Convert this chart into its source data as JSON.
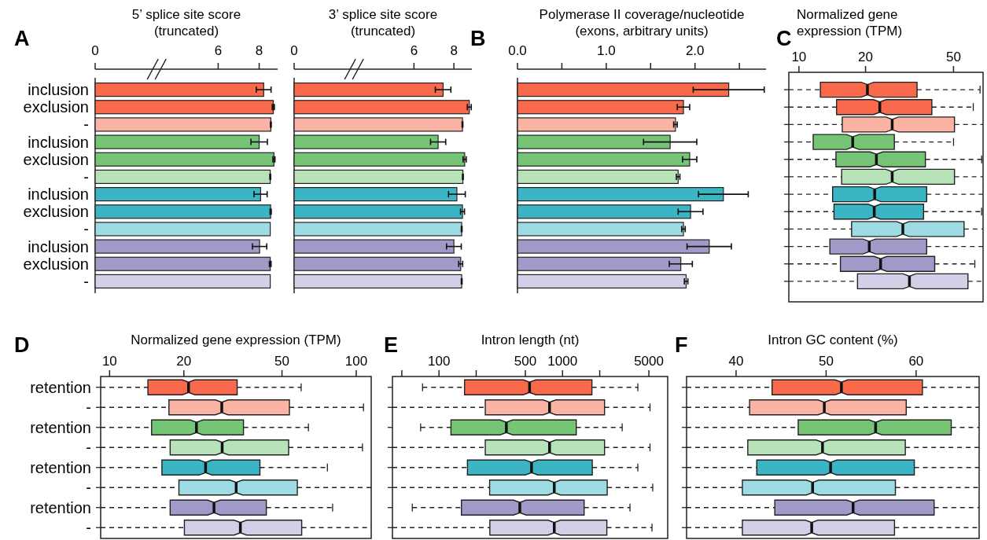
{
  "chart_data": [
    {
      "type": "bar",
      "orientation": "horizontal",
      "xlabel": "5’ splice site score\n(truncated)",
      "annotations": [
        "A"
      ],
      "categories": [
        "inclusion",
        "exclusion",
        "-",
        "inclusion",
        "exclusion",
        "-",
        "inclusion",
        "exclusion",
        "-",
        "inclusion",
        "exclusion",
        "-"
      ],
      "values": [
        8.22,
        8.69,
        8.57,
        8.0,
        8.72,
        8.54,
        8.07,
        8.56,
        8.54,
        8.02,
        8.54,
        8.54
      ],
      "errors": [
        0.36,
        0.05,
        0.02,
        0.4,
        0.05,
        0.02,
        0.32,
        0.03,
        null,
        0.35,
        0.04,
        null
      ],
      "colors": [
        "#f96a4c",
        "#f96a4c",
        "#fbb3a3",
        "#76c576",
        "#76c576",
        "#b8e2b8",
        "#3bb5c4",
        "#3bb5c4",
        "#9fdbe2",
        "#a09ac8",
        "#a09ac8",
        "#d2cfe6"
      ],
      "xlim": [
        0,
        8.9
      ],
      "xticks": [
        0,
        6,
        8
      ]
    },
    {
      "type": "bar",
      "orientation": "horizontal",
      "xlabel": "3’ splice site score\n(truncated)",
      "categories": [
        null,
        null,
        null,
        null,
        null,
        null,
        null,
        null,
        null,
        null,
        null,
        null
      ],
      "values": [
        7.46,
        8.77,
        8.43,
        7.21,
        8.54,
        8.45,
        8.15,
        8.43,
        8.39,
        8.0,
        8.34,
        8.39
      ],
      "errors": [
        0.39,
        0.1,
        0.02,
        0.38,
        0.08,
        0.02,
        0.42,
        0.1,
        0.02,
        0.37,
        0.1,
        0.02
      ],
      "colors": [
        "#f96a4c",
        "#f96a4c",
        "#fbb3a3",
        "#76c576",
        "#76c576",
        "#b8e2b8",
        "#3bb5c4",
        "#3bb5c4",
        "#9fdbe2",
        "#a09ac8",
        "#a09ac8",
        "#d2cfe6"
      ],
      "xlim": [
        0,
        8.9
      ],
      "xticks": [
        0,
        6,
        8
      ]
    },
    {
      "type": "bar",
      "orientation": "horizontal",
      "xlabel": "Polymerase II coverage/nucleotide\n(exons, arbitrary units)",
      "annotations": [
        "B"
      ],
      "categories": [
        null,
        null,
        null,
        null,
        null,
        null,
        null,
        null,
        null,
        null,
        null,
        null
      ],
      "values": [
        2.38,
        1.87,
        1.78,
        1.72,
        1.94,
        1.81,
        2.32,
        1.95,
        1.87,
        2.16,
        1.84,
        1.9
      ],
      "errors": [
        0.4,
        0.07,
        0.02,
        0.3,
        0.08,
        0.02,
        0.28,
        0.14,
        0.02,
        0.25,
        0.13,
        0.02
      ],
      "colors": [
        "#f96a4c",
        "#f96a4c",
        "#fbb3a3",
        "#76c576",
        "#76c576",
        "#b8e2b8",
        "#3bb5c4",
        "#3bb5c4",
        "#9fdbe2",
        "#a09ac8",
        "#a09ac8",
        "#d2cfe6"
      ],
      "xlim": [
        0,
        2.8
      ],
      "xticks": [
        {
          "value": 0,
          "label": "0.0"
        },
        {
          "value": 0.5,
          "label": null
        },
        {
          "value": 1,
          "label": "1.0"
        },
        {
          "value": 1.5,
          "label": null
        },
        {
          "value": 2,
          "label": "2.0"
        },
        {
          "value": 2.5,
          "label": null
        }
      ]
    },
    {
      "type": "box",
      "orientation": "horizontal",
      "log": "x",
      "xlabel": "Normalized gene\nexpression (TPM)",
      "annotations": [
        "C"
      ],
      "categories": [
        null,
        null,
        null,
        null,
        null,
        null,
        null,
        null,
        null,
        null,
        null,
        null
      ],
      "colors": [
        "#f96a4c",
        "#f96a4c",
        "#fbb3a3",
        "#76c576",
        "#76c576",
        "#b8e2b8",
        "#3bb5c4",
        "#3bb5c4",
        "#9fdbe2",
        "#a09ac8",
        "#a09ac8",
        "#d2cfe6"
      ],
      "boxes": [
        {
          "low": 9,
          "q1": 12.5,
          "median": 20.4,
          "q3": 34.2,
          "high": 65.9
        },
        {
          "low": 9,
          "q1": 14.8,
          "median": 23.2,
          "q3": 39.9,
          "high": 61.4
        },
        {
          "low": 9,
          "q1": 15.7,
          "median": 26.4,
          "q3": 50.5,
          "high": 68
        },
        {
          "low": 9,
          "q1": 11.6,
          "median": 17.5,
          "q3": 27,
          "high": 50
        },
        {
          "low": 9,
          "q1": 14.7,
          "median": 22.4,
          "q3": 37.3,
          "high": 67
        },
        {
          "low": 9,
          "q1": 15.6,
          "median": 26.4,
          "q3": 50.5,
          "high": 68
        },
        {
          "low": 9,
          "q1": 14.2,
          "median": 22,
          "q3": 37.8,
          "high": 68
        },
        {
          "low": 9,
          "q1": 14.4,
          "median": 21.9,
          "q3": 36.6,
          "high": 67
        },
        {
          "low": 9,
          "q1": 17.3,
          "median": 29.5,
          "q3": 55.8,
          "high": 68
        },
        {
          "low": 9,
          "q1": 13.8,
          "median": 20.8,
          "q3": 37.8,
          "high": 68
        },
        {
          "low": 9,
          "q1": 15.4,
          "median": 23.4,
          "q3": 41.1,
          "high": 62.4
        },
        {
          "low": 9,
          "q1": 18.4,
          "median": 31.6,
          "q3": 58.1,
          "high": 68
        }
      ],
      "xlim": [
        9,
        68
      ],
      "xticks": [
        10,
        20,
        50
      ]
    },
    {
      "type": "box",
      "orientation": "horizontal",
      "log": "x",
      "xlabel": "Normalized gene expression (TPM)",
      "annotations": [
        "D"
      ],
      "categories": [
        "retention",
        "-",
        "retention",
        "-",
        "retention",
        "-",
        "retention",
        "-"
      ],
      "colors": [
        "#f96a4c",
        "#fbb3a3",
        "#76c576",
        "#b8e2b8",
        "#3bb5c4",
        "#9fdbe2",
        "#a09ac8",
        "#d2cfe6"
      ],
      "boxes": [
        {
          "low": 9.2,
          "q1": 14.3,
          "median": 20.9,
          "q3": 32.9,
          "high": 59.8
        },
        {
          "low": 9.2,
          "q1": 17.4,
          "median": 28.5,
          "q3": 53.6,
          "high": 107
        },
        {
          "low": 9.2,
          "q1": 14.8,
          "median": 22.5,
          "q3": 34.9,
          "high": 64
        },
        {
          "low": 9.2,
          "q1": 17.6,
          "median": 28.6,
          "q3": 53.2,
          "high": 106
        },
        {
          "low": 9.2,
          "q1": 16.3,
          "median": 24.5,
          "q3": 40.7,
          "high": 76.4
        },
        {
          "low": 9.2,
          "q1": 19.1,
          "median": 32.6,
          "q3": 57.7,
          "high": 115
        },
        {
          "low": 9.2,
          "q1": 17.6,
          "median": 26.5,
          "q3": 43.2,
          "high": 80.2
        },
        {
          "low": 9.2,
          "q1": 20.1,
          "median": 33.9,
          "q3": 60.1,
          "high": 115
        }
      ],
      "xlim": [
        9.2,
        115
      ],
      "xticks": [
        10,
        20,
        50,
        100
      ]
    },
    {
      "type": "box",
      "orientation": "horizontal",
      "log": "x",
      "xlabel": "Intron length (nt)",
      "annotations": [
        "E"
      ],
      "categories": [
        null,
        null,
        null,
        null,
        null,
        null,
        null,
        null
      ],
      "colors": [
        "#f96a4c",
        "#fbb3a3",
        "#76c576",
        "#b8e2b8",
        "#3bb5c4",
        "#9fdbe2",
        "#a09ac8",
        "#d2cfe6"
      ],
      "boxes": [
        {
          "low": 73.6,
          "q1": 161,
          "median": 541,
          "q3": 1729,
          "high": 4070
        },
        {
          "low": 42,
          "q1": 237,
          "median": 785,
          "q3": 2188,
          "high": 5105
        },
        {
          "low": 71,
          "q1": 125,
          "median": 351,
          "q3": 1291,
          "high": 3040
        },
        {
          "low": 42,
          "q1": 237,
          "median": 785,
          "q3": 2188,
          "high": 5105
        },
        {
          "low": 42,
          "q1": 170,
          "median": 561,
          "q3": 1741,
          "high": 4070
        },
        {
          "low": 42,
          "q1": 257,
          "median": 857,
          "q3": 2300,
          "high": 5370
        },
        {
          "low": 60.8,
          "q1": 152,
          "median": 451,
          "q3": 1496,
          "high": 3515
        },
        {
          "low": 42,
          "q1": 258,
          "median": 857,
          "q3": 2284,
          "high": 5300
        }
      ],
      "xlim": [
        42,
        7100
      ],
      "xticks": [
        {
          "value": 50,
          "label": null
        },
        100,
        {
          "value": 200,
          "label": null
        },
        500,
        1000,
        {
          "value": 2000,
          "label": null
        },
        5000
      ]
    },
    {
      "type": "box",
      "orientation": "horizontal",
      "xlabel": "Intron GC content (%)",
      "annotations": [
        "F"
      ],
      "categories": [
        null,
        null,
        null,
        null,
        null,
        null,
        null,
        null
      ],
      "colors": [
        "#f96a4c",
        "#fbb3a3",
        "#76c576",
        "#b8e2b8",
        "#3bb5c4",
        "#9fdbe2",
        "#a09ac8",
        "#d2cfe6"
      ],
      "boxes": [
        {
          "low": 34.5,
          "q1": 44,
          "median": 51.7,
          "q3": 60.7,
          "high": 67
        },
        {
          "low": 34.5,
          "q1": 41.5,
          "median": 49.8,
          "q3": 58.9,
          "high": 67
        },
        {
          "low": 34.5,
          "q1": 46.9,
          "median": 55.5,
          "q3": 63.9,
          "high": 67
        },
        {
          "low": 34.5,
          "q1": 41.3,
          "median": 49.6,
          "q3": 58.8,
          "high": 67
        },
        {
          "low": 34.5,
          "q1": 42.3,
          "median": 50.5,
          "q3": 59.8,
          "high": 67
        },
        {
          "low": 34.5,
          "q1": 40.7,
          "median": 48.5,
          "q3": 57.7,
          "high": 67
        },
        {
          "low": 34.5,
          "q1": 44.3,
          "median": 53,
          "q3": 62,
          "high": 67
        },
        {
          "low": 34.5,
          "q1": 40.7,
          "median": 48.4,
          "q3": 57.6,
          "high": 67
        }
      ],
      "xlim": [
        34.5,
        67
      ],
      "xticks": [
        40,
        50,
        60
      ]
    }
  ]
}
